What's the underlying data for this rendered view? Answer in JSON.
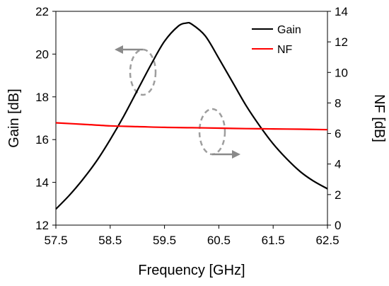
{
  "chart_data": {
    "type": "line",
    "xlabel": "Frequency [GHz]",
    "ylabel": "Gain [dB]",
    "y2label": "NF [dB]",
    "xlim": [
      57.5,
      62.5
    ],
    "ylim": [
      12,
      22
    ],
    "y2lim": [
      0,
      14
    ],
    "x_ticks": [
      "57.5",
      "58.5",
      "59.5",
      "60.5",
      "61.5",
      "62.5"
    ],
    "y_ticks": [
      "12",
      "14",
      "16",
      "18",
      "20",
      "22"
    ],
    "y2_ticks": [
      "0",
      "2",
      "4",
      "6",
      "8",
      "10",
      "12",
      "14"
    ],
    "grid": false,
    "legend_position": "top-right",
    "series": [
      {
        "name": "Gain",
        "axis": "left",
        "color": "#000000",
        "x": [
          57.5,
          57.75,
          58.0,
          58.25,
          58.5,
          58.75,
          59.0,
          59.25,
          59.5,
          59.75,
          59.9,
          60.0,
          60.25,
          60.5,
          60.75,
          61.0,
          61.25,
          61.5,
          61.75,
          62.0,
          62.25,
          62.5
        ],
        "values": [
          12.75,
          13.4,
          14.15,
          15.0,
          16.0,
          17.1,
          18.3,
          19.5,
          20.6,
          21.3,
          21.45,
          21.4,
          20.85,
          19.8,
          18.7,
          17.6,
          16.65,
          15.8,
          15.1,
          14.5,
          14.05,
          13.7
        ]
      },
      {
        "name": "NF",
        "axis": "right",
        "color": "#ff0000",
        "x": [
          57.5,
          58.0,
          58.5,
          59.0,
          59.5,
          60.0,
          60.5,
          61.0,
          61.5,
          62.0,
          62.5
        ],
        "values": [
          6.7,
          6.6,
          6.5,
          6.45,
          6.4,
          6.38,
          6.35,
          6.32,
          6.3,
          6.28,
          6.25
        ]
      }
    ],
    "annotations": [
      {
        "type": "ellipse-arrow",
        "series": "Gain",
        "points_to": "left axis"
      },
      {
        "type": "ellipse-arrow",
        "series": "NF",
        "points_to": "right axis"
      }
    ]
  }
}
